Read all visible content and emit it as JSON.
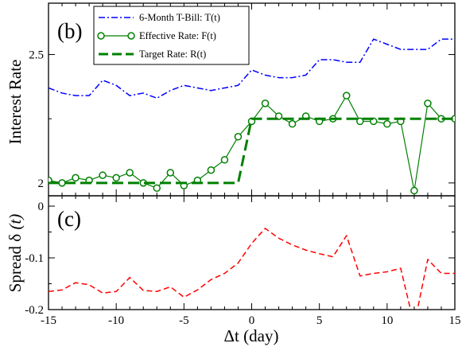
{
  "chart_data": [
    {
      "panel_label": "(b)",
      "type": "line",
      "ylabel": "Interest Rate",
      "xlim": [
        -15,
        15
      ],
      "ylim": [
        1.95,
        2.7
      ],
      "xticks": [
        -15,
        -10,
        -5,
        0,
        5,
        10,
        15
      ],
      "yticks": [
        2,
        2.5
      ],
      "ytick_labels": [
        "2",
        "2.5"
      ],
      "legend_position": "top-left",
      "series": [
        {
          "name": "6-Month T-Bill:  T(t)",
          "color": "#0000ff",
          "style": "dash-dot",
          "x": [
            -15,
            -14,
            -13,
            -12,
            -11,
            -10,
            -9,
            -8,
            -7,
            -6,
            -5,
            -4,
            -3,
            -2,
            -1,
            0,
            1,
            2,
            3,
            4,
            5,
            6,
            7,
            8,
            9,
            10,
            11,
            12,
            13,
            14,
            15
          ],
          "y": [
            2.37,
            2.35,
            2.34,
            2.34,
            2.4,
            2.38,
            2.34,
            2.35,
            2.33,
            2.36,
            2.38,
            2.37,
            2.36,
            2.37,
            2.38,
            2.44,
            2.42,
            2.41,
            2.41,
            2.42,
            2.48,
            2.48,
            2.47,
            2.47,
            2.56,
            2.54,
            2.52,
            2.52,
            2.52,
            2.56,
            2.56
          ]
        },
        {
          "name": "Effective Rate:  F(t)",
          "color": "#008000",
          "style": "solid-circle",
          "x": [
            -15,
            -14,
            -13,
            -12,
            -11,
            -10,
            -9,
            -8,
            -7,
            -6,
            -5,
            -4,
            -3,
            -2,
            -1,
            0,
            1,
            2,
            3,
            4,
            5,
            6,
            7,
            8,
            9,
            10,
            11,
            12,
            13,
            14,
            15
          ],
          "y": [
            2.01,
            2.0,
            2.02,
            2.01,
            2.03,
            2.02,
            2.04,
            2.0,
            1.98,
            2.04,
            1.99,
            2.01,
            2.05,
            2.09,
            2.18,
            2.24,
            2.31,
            2.26,
            2.23,
            2.26,
            2.24,
            2.25,
            2.34,
            2.24,
            2.24,
            2.23,
            2.24,
            1.97,
            2.31,
            2.25,
            2.25
          ]
        },
        {
          "name": "Target Rate:  R(t)",
          "color": "#008000",
          "style": "thick-dashed",
          "x": [
            -15,
            -1,
            0,
            15
          ],
          "y": [
            2.0,
            2.0,
            2.25,
            2.25
          ]
        }
      ]
    },
    {
      "panel_label": "(c)",
      "type": "line",
      "xlabel": "Δt (day)",
      "ylabel_text": "Spread",
      "ylabel_symbol": "δ",
      "ylabel_arg": "(t)",
      "xlim": [
        -15,
        15
      ],
      "ylim": [
        -0.2,
        0.02
      ],
      "xticks": [
        -15,
        -10,
        -5,
        0,
        5,
        10,
        15
      ],
      "xtick_labels": [
        "-15",
        "-10",
        "-5",
        "0",
        "5",
        "10",
        "15"
      ],
      "yticks": [
        0,
        -0.1,
        -0.2
      ],
      "ytick_labels": [
        "0",
        "-0.1",
        "-0.2"
      ],
      "series": [
        {
          "color": "#ff0000",
          "style": "dashed",
          "x": [
            -15,
            -14,
            -13,
            -12,
            -11,
            -10,
            -9,
            -8,
            -7,
            -6,
            -5,
            -4,
            -3,
            -2,
            -1,
            0,
            1,
            2,
            3,
            4,
            5,
            6,
            7,
            8,
            9,
            10,
            11,
            12,
            13,
            14,
            15
          ],
          "y": [
            -0.165,
            -0.162,
            -0.148,
            -0.152,
            -0.168,
            -0.165,
            -0.138,
            -0.163,
            -0.165,
            -0.156,
            -0.176,
            -0.162,
            -0.142,
            -0.13,
            -0.11,
            -0.072,
            -0.043,
            -0.062,
            -0.075,
            -0.085,
            -0.092,
            -0.098,
            -0.057,
            -0.135,
            -0.13,
            -0.127,
            -0.12,
            -0.23,
            -0.103,
            -0.13,
            -0.13
          ]
        }
      ]
    }
  ]
}
